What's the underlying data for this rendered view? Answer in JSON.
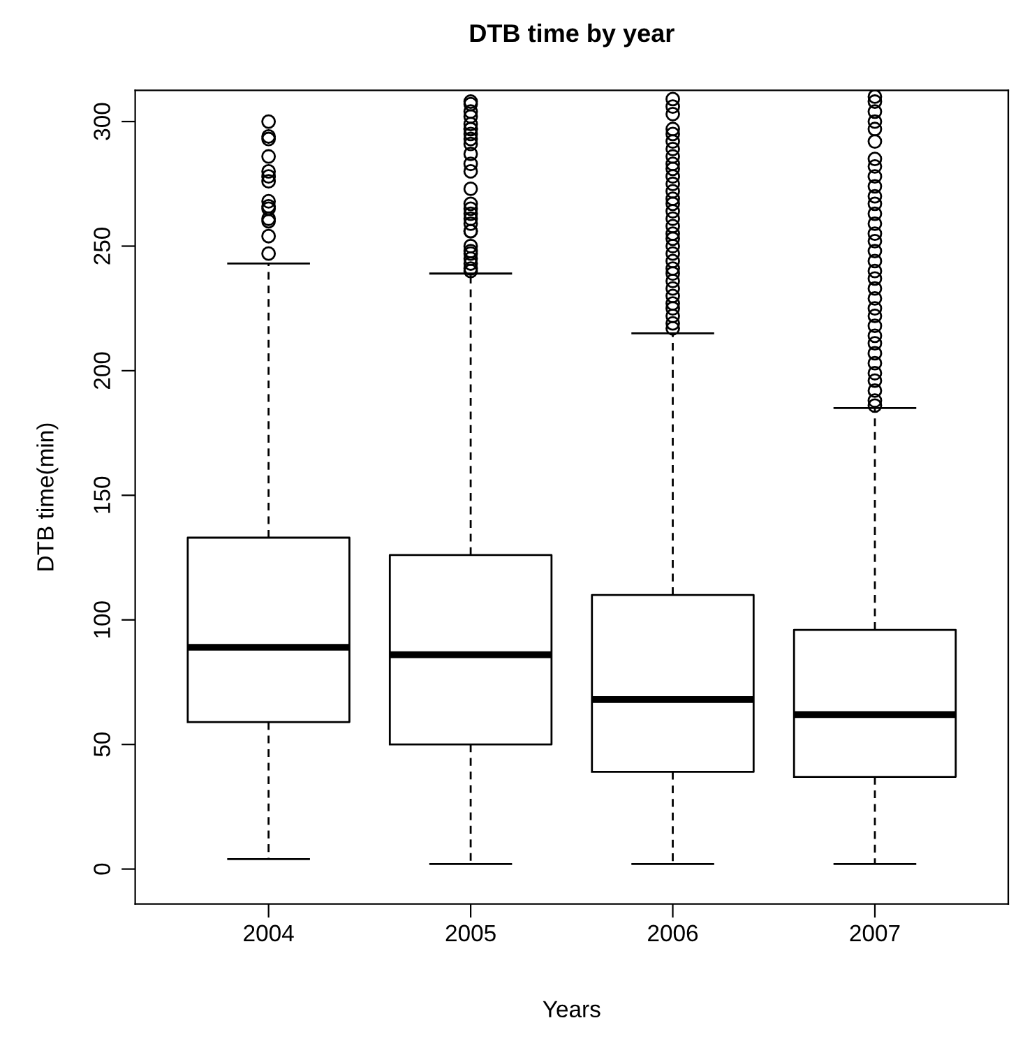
{
  "chart_data": {
    "type": "box",
    "title": "DTB time by year",
    "xlabel": "Years",
    "ylabel": "DTB time(min)",
    "categories": [
      "2004",
      "2005",
      "2006",
      "2007"
    ],
    "boxes": [
      {
        "low": 4,
        "q1": 59,
        "median": 89,
        "q3": 133,
        "high": 243,
        "outliers": [
          300,
          294,
          293,
          286,
          280,
          278,
          276,
          268,
          266,
          265,
          261,
          260,
          254,
          247
        ]
      },
      {
        "low": 2,
        "q1": 50,
        "median": 86,
        "q3": 126,
        "high": 239,
        "outliers": [
          308,
          307,
          304,
          302,
          299,
          297,
          297,
          295,
          293,
          291,
          287,
          283,
          280,
          273,
          267,
          265,
          263,
          261,
          259,
          256,
          256,
          250,
          248,
          247,
          245,
          243,
          241,
          240
        ]
      },
      {
        "low": 2,
        "q1": 39,
        "median": 68,
        "q3": 110,
        "high": 215,
        "outliers": [
          309,
          306,
          303,
          297,
          295,
          292,
          289,
          286,
          283,
          281,
          278,
          275,
          272,
          269,
          267,
          264,
          261,
          258,
          255,
          253,
          250,
          247,
          244,
          241,
          239,
          236,
          233,
          230,
          227,
          225,
          222,
          219,
          217
        ]
      },
      {
        "low": 2,
        "q1": 37,
        "median": 62,
        "q3": 96,
        "high": 185,
        "outliers": [
          310,
          308,
          304,
          300,
          297,
          292,
          285,
          282,
          278,
          274,
          270,
          267,
          263,
          259,
          255,
          252,
          248,
          244,
          240,
          237,
          233,
          229,
          225,
          222,
          218,
          214,
          211,
          207,
          203,
          199,
          196,
          192,
          188,
          186
        ]
      }
    ],
    "ylim": [
      -14,
      312.5
    ],
    "yticks": [
      0,
      50,
      100,
      150,
      200,
      250,
      300
    ],
    "marker": "circle",
    "grid": false
  }
}
